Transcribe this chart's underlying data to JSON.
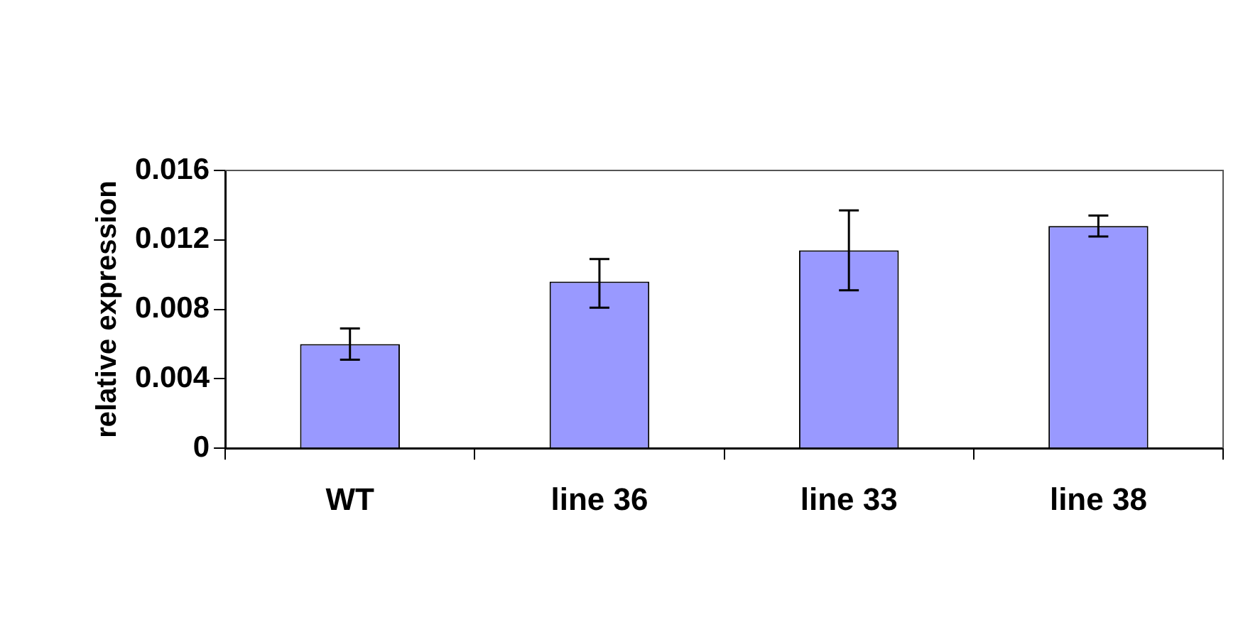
{
  "chart_data": {
    "type": "bar",
    "ylabel": "relative expression",
    "categories": [
      "WT",
      "line 36",
      "line 33",
      "line 38"
    ],
    "values": [
      0.006,
      0.0096,
      0.0114,
      0.0128
    ],
    "errors": [
      [
        0.0051,
        0.0069
      ],
      [
        0.0081,
        0.0109
      ],
      [
        0.0091,
        0.0137
      ],
      [
        0.0122,
        0.0134
      ]
    ],
    "color": "#9999ff",
    "ylim": [
      0,
      0.016
    ],
    "yticks": [
      0,
      0.004,
      0.008,
      0.012,
      0.016
    ],
    "grid": false,
    "legend": false
  }
}
